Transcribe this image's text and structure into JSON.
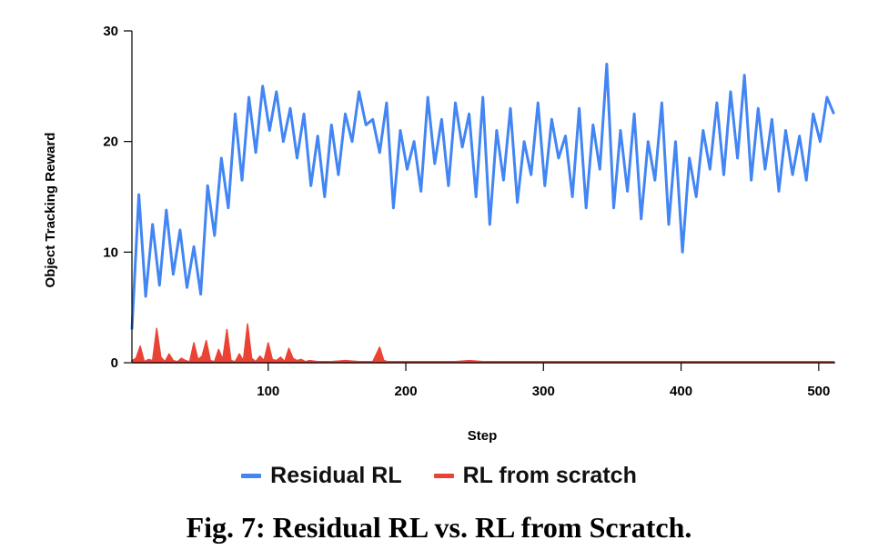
{
  "caption": "Fig. 7: Residual RL vs. RL from Scratch.",
  "chart_data": {
    "type": "line",
    "xlabel": "Step",
    "ylabel": "Object Tracking Reward",
    "xlim": [
      1,
      512
    ],
    "ylim": [
      0,
      30
    ],
    "xticks": [
      100,
      200,
      300,
      400,
      500
    ],
    "yticks": [
      0,
      10,
      20,
      30
    ],
    "grid": false,
    "legend_position": "bottom",
    "series": [
      {
        "name": "Residual RL",
        "color": "#4285f4",
        "x": [
          1,
          6,
          11,
          16,
          21,
          26,
          31,
          36,
          41,
          46,
          51,
          56,
          61,
          66,
          71,
          76,
          81,
          86,
          91,
          96,
          101,
          106,
          111,
          116,
          121,
          126,
          131,
          136,
          141,
          146,
          151,
          156,
          161,
          166,
          171,
          176,
          181,
          186,
          191,
          196,
          201,
          206,
          211,
          216,
          221,
          226,
          231,
          236,
          241,
          246,
          251,
          256,
          261,
          266,
          271,
          276,
          281,
          286,
          291,
          296,
          301,
          306,
          311,
          316,
          321,
          326,
          331,
          336,
          341,
          346,
          351,
          356,
          361,
          366,
          371,
          376,
          381,
          386,
          391,
          396,
          401,
          406,
          411,
          416,
          421,
          426,
          431,
          436,
          441,
          446,
          451,
          456,
          461,
          466,
          471,
          476,
          481,
          486,
          491,
          496,
          501,
          506,
          511
        ],
        "values": [
          3.0,
          15.2,
          6.0,
          12.5,
          7.0,
          13.8,
          8.0,
          12.0,
          6.8,
          10.5,
          6.2,
          16.0,
          11.5,
          18.5,
          14.0,
          22.5,
          16.5,
          24.0,
          19.0,
          25.0,
          21.0,
          24.5,
          20.0,
          23.0,
          18.5,
          22.5,
          16.0,
          20.5,
          15.0,
          21.5,
          17.0,
          22.5,
          20.0,
          24.5,
          21.5,
          22.0,
          19.0,
          23.5,
          14.0,
          21.0,
          17.5,
          20.0,
          15.5,
          24.0,
          18.0,
          22.0,
          16.0,
          23.5,
          19.5,
          22.5,
          15.0,
          24.0,
          12.5,
          21.0,
          16.5,
          23.0,
          14.5,
          20.0,
          17.0,
          23.5,
          16.0,
          22.0,
          18.5,
          20.5,
          15.0,
          23.0,
          14.0,
          21.5,
          17.5,
          27.0,
          14.0,
          21.0,
          15.5,
          22.5,
          13.0,
          20.0,
          16.5,
          23.5,
          12.5,
          20.0,
          10.0,
          18.5,
          15.0,
          21.0,
          17.5,
          23.5,
          17.0,
          24.5,
          18.5,
          26.0,
          16.5,
          23.0,
          17.5,
          22.0,
          15.5,
          21.0,
          17.0,
          20.5,
          16.5,
          22.5,
          20.0,
          24.0,
          22.5
        ]
      },
      {
        "name": "RL from scratch",
        "color": "#ea4335",
        "x": [
          1,
          4,
          7,
          10,
          13,
          16,
          19,
          22,
          25,
          28,
          31,
          34,
          37,
          40,
          43,
          46,
          49,
          52,
          55,
          58,
          61,
          64,
          67,
          70,
          73,
          76,
          79,
          82,
          85,
          88,
          91,
          94,
          97,
          100,
          103,
          106,
          109,
          112,
          115,
          118,
          121,
          124,
          127,
          130,
          136,
          146,
          156,
          166,
          176,
          181,
          184,
          187,
          196,
          216,
          236,
          246,
          256,
          266,
          286,
          306,
          326,
          346,
          366,
          386,
          406,
          426,
          446,
          466,
          486,
          506,
          511
        ],
        "values": [
          0.2,
          0.4,
          1.5,
          0.1,
          0.3,
          0.2,
          3.1,
          0.5,
          0.1,
          0.8,
          0.2,
          0.1,
          0.4,
          0.2,
          0.1,
          1.8,
          0.3,
          0.6,
          2.0,
          0.2,
          0.1,
          1.2,
          0.3,
          3.0,
          0.2,
          0.1,
          0.8,
          0.2,
          3.5,
          0.4,
          0.1,
          0.6,
          0.2,
          1.8,
          0.3,
          0.2,
          0.5,
          0.1,
          1.3,
          0.4,
          0.2,
          0.3,
          0.1,
          0.2,
          0.1,
          0.1,
          0.2,
          0.1,
          0.1,
          1.4,
          0.2,
          0.1,
          0.1,
          0.1,
          0.1,
          0.2,
          0.1,
          0.1,
          0.1,
          0.1,
          0.1,
          0.1,
          0.1,
          0.1,
          0.1,
          0.1,
          0.1,
          0.1,
          0.1,
          0.1,
          0.1
        ]
      }
    ]
  }
}
